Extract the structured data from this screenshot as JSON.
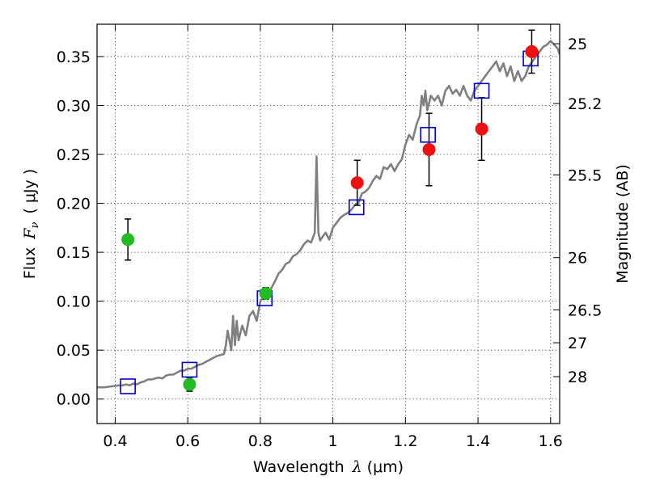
{
  "chart_data": {
    "type": "scatter",
    "xlabel": "Wavelength",
    "xlabel_symbol": "λ",
    "xlabel_unit": "(μm)",
    "ylabel": "Flux",
    "ylabel_symbol": "F",
    "ylabel_symbol_sub": "ν",
    "ylabel_unit": "( μJy )",
    "y2label": "Magnitude (AB)",
    "xlim": [
      0.35,
      1.625
    ],
    "ylim": [
      -0.025,
      0.383
    ],
    "grid": true,
    "x_ticks": [
      0.4,
      0.6,
      0.8,
      1.0,
      1.2,
      1.4,
      1.6
    ],
    "x_tick_labels": [
      "0.4",
      "0.6",
      "0.8",
      "1",
      "1.2",
      "1.4",
      "1.6"
    ],
    "y_ticks": [
      0.0,
      0.05,
      0.1,
      0.15,
      0.2,
      0.25,
      0.3,
      0.35
    ],
    "y_tick_labels": [
      "0.00",
      "0.05",
      "0.10",
      "0.15",
      "0.20",
      "0.25",
      "0.30",
      "0.35"
    ],
    "y2_ticks": [
      {
        "mag": 25,
        "label": "25"
      },
      {
        "mag": 25.2,
        "label": "25.2"
      },
      {
        "mag": 25.5,
        "label": "25.5"
      },
      {
        "mag": 26,
        "label": "26"
      },
      {
        "mag": 26.5,
        "label": "26.5"
      },
      {
        "mag": 27,
        "label": "27"
      },
      {
        "mag": 28,
        "label": "28"
      }
    ],
    "series": [
      {
        "marker": "line",
        "color": "#808080",
        "x": [
          0.35,
          0.37,
          0.39,
          0.41,
          0.42,
          0.43,
          0.44,
          0.45,
          0.46,
          0.47,
          0.48,
          0.49,
          0.5,
          0.51,
          0.52,
          0.53,
          0.54,
          0.55,
          0.56,
          0.57,
          0.58,
          0.59,
          0.6,
          0.61,
          0.62,
          0.63,
          0.64,
          0.65,
          0.66,
          0.67,
          0.68,
          0.69,
          0.7,
          0.705,
          0.71,
          0.72,
          0.725,
          0.73,
          0.735,
          0.74,
          0.75,
          0.76,
          0.77,
          0.78,
          0.79,
          0.8,
          0.81,
          0.82,
          0.83,
          0.84,
          0.85,
          0.86,
          0.87,
          0.88,
          0.89,
          0.9,
          0.91,
          0.92,
          0.93,
          0.94,
          0.95,
          0.955,
          0.96,
          0.965,
          0.97,
          0.98,
          0.99,
          1.0,
          1.01,
          1.02,
          1.03,
          1.04,
          1.05,
          1.06,
          1.07,
          1.08,
          1.09,
          1.1,
          1.11,
          1.12,
          1.13,
          1.14,
          1.15,
          1.16,
          1.17,
          1.18,
          1.19,
          1.2,
          1.21,
          1.22,
          1.23,
          1.24,
          1.245,
          1.25,
          1.255,
          1.26,
          1.27,
          1.28,
          1.29,
          1.3,
          1.31,
          1.32,
          1.33,
          1.34,
          1.35,
          1.36,
          1.37,
          1.38,
          1.39,
          1.4,
          1.41,
          1.42,
          1.43,
          1.44,
          1.45,
          1.46,
          1.47,
          1.48,
          1.49,
          1.5,
          1.51,
          1.52,
          1.53,
          1.54,
          1.55,
          1.56,
          1.57,
          1.58,
          1.59,
          1.6,
          1.61,
          1.62,
          1.625
        ],
        "y": [
          0.012,
          0.012,
          0.013,
          0.014,
          0.014,
          0.015,
          0.014,
          0.016,
          0.015,
          0.017,
          0.018,
          0.02,
          0.02,
          0.021,
          0.022,
          0.021,
          0.024,
          0.025,
          0.025,
          0.027,
          0.029,
          0.029,
          0.031,
          0.031,
          0.033,
          0.035,
          0.036,
          0.038,
          0.04,
          0.042,
          0.044,
          0.045,
          0.046,
          0.055,
          0.07,
          0.05,
          0.085,
          0.055,
          0.08,
          0.06,
          0.075,
          0.065,
          0.085,
          0.09,
          0.08,
          0.1,
          0.105,
          0.105,
          0.113,
          0.12,
          0.128,
          0.132,
          0.138,
          0.14,
          0.146,
          0.148,
          0.152,
          0.158,
          0.162,
          0.16,
          0.17,
          0.248,
          0.17,
          0.162,
          0.165,
          0.17,
          0.163,
          0.175,
          0.18,
          0.185,
          0.188,
          0.19,
          0.193,
          0.198,
          0.2,
          0.21,
          0.212,
          0.216,
          0.223,
          0.228,
          0.225,
          0.237,
          0.235,
          0.24,
          0.233,
          0.24,
          0.245,
          0.26,
          0.27,
          0.265,
          0.28,
          0.29,
          0.31,
          0.3,
          0.315,
          0.295,
          0.31,
          0.305,
          0.31,
          0.3,
          0.315,
          0.32,
          0.312,
          0.316,
          0.31,
          0.32,
          0.31,
          0.305,
          0.315,
          0.32,
          0.325,
          0.33,
          0.335,
          0.34,
          0.345,
          0.335,
          0.343,
          0.33,
          0.34,
          0.325,
          0.335,
          0.325,
          0.33,
          0.34,
          0.345,
          0.35,
          0.355,
          0.36,
          0.362,
          0.366,
          0.362,
          0.358,
          0.352
        ]
      },
      {
        "marker": "square",
        "color": "#0000cc",
        "x": [
          0.435,
          0.605,
          0.812,
          1.065,
          1.262,
          1.41,
          1.545
        ],
        "y": [
          0.013,
          0.03,
          0.103,
          0.196,
          0.27,
          0.315,
          0.348
        ]
      },
      {
        "marker": "circle",
        "color": "#22bb22",
        "x": [
          0.435,
          0.605,
          0.815
        ],
        "y": [
          0.163,
          0.015,
          0.108
        ],
        "err": [
          0.021,
          0.007,
          0.006
        ]
      },
      {
        "marker": "circle",
        "color": "#ee1111",
        "x": [
          1.067,
          1.265,
          1.41,
          1.548
        ],
        "y": [
          0.221,
          0.255,
          0.276,
          0.355
        ],
        "err": [
          0.023,
          0.037,
          0.032,
          0.022
        ]
      }
    ]
  }
}
